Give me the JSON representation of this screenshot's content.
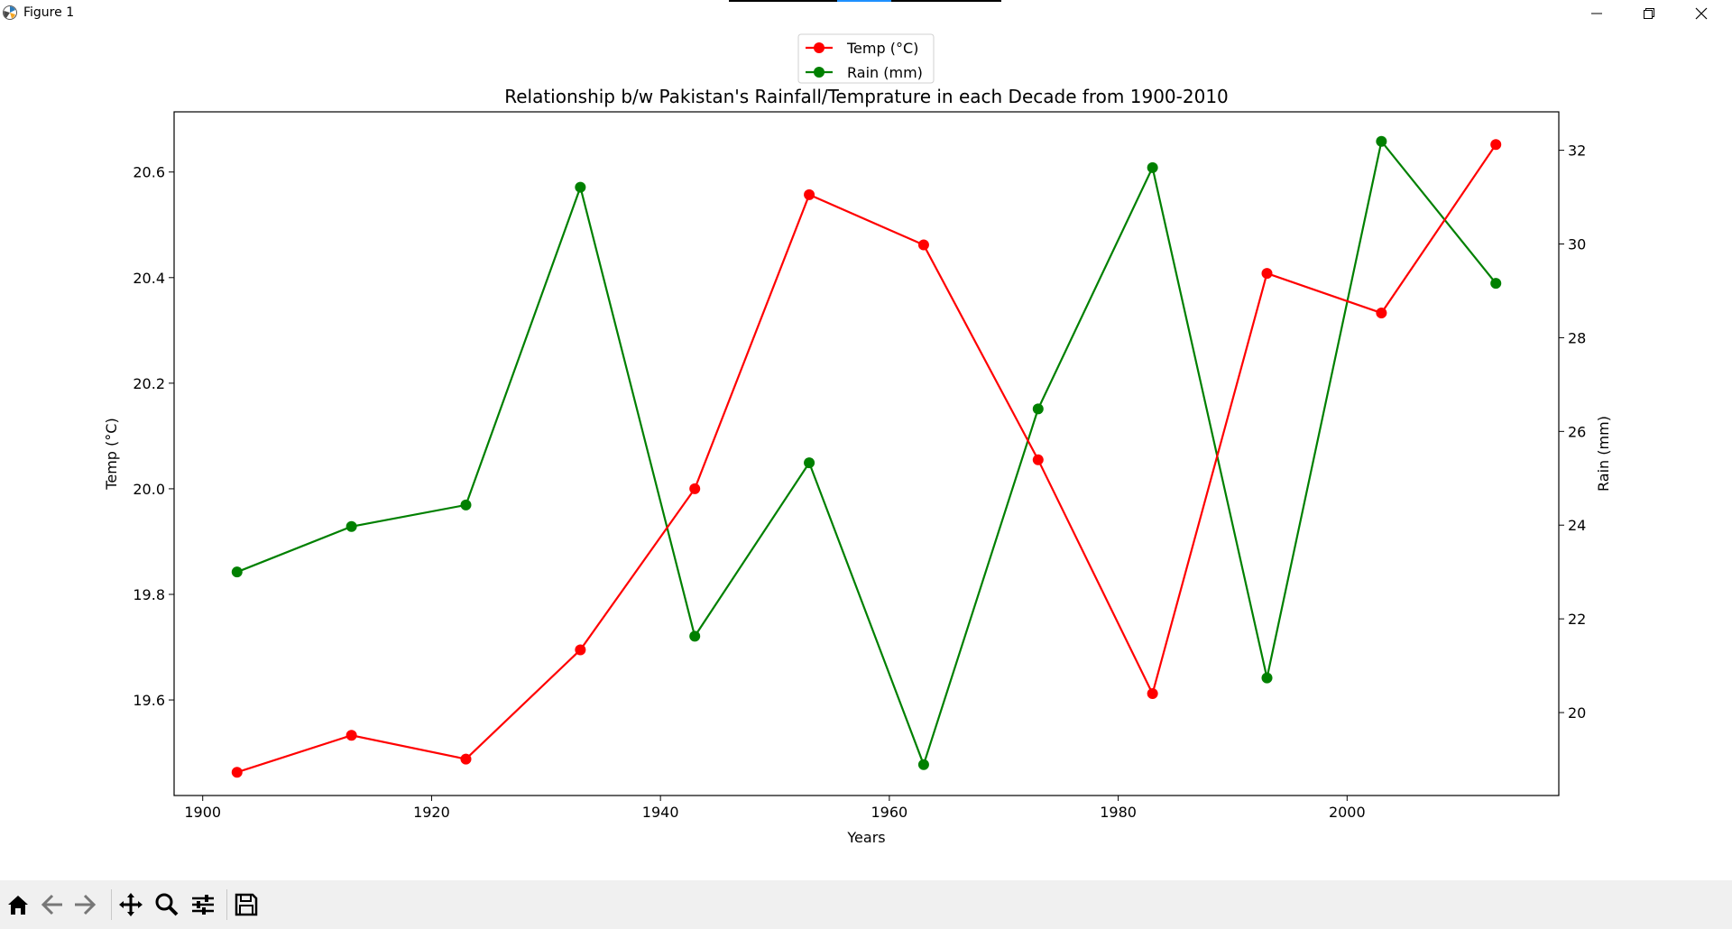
{
  "window": {
    "title": "Figure 1",
    "icons": {
      "app": "matplotlib-icon",
      "minimize": "minimize-icon",
      "maximize": "restore-icon",
      "close": "close-icon"
    }
  },
  "toolbar": {
    "buttons": [
      {
        "id": "home",
        "icon": "home-icon"
      },
      {
        "id": "back",
        "icon": "arrow-left-icon"
      },
      {
        "id": "forward",
        "icon": "arrow-right-icon"
      },
      {
        "id": "pan",
        "icon": "move-icon"
      },
      {
        "id": "zoom",
        "icon": "magnifier-icon"
      },
      {
        "id": "configure",
        "icon": "sliders-icon"
      },
      {
        "id": "save",
        "icon": "floppy-disk-icon"
      }
    ]
  },
  "chart_data": {
    "type": "line",
    "title": "Relationship b/w Pakistan's Rainfall/Temprature in each Decade from 1900-2010",
    "xlabel": "Years",
    "ylabel": "Temp (°C)",
    "y2label": "Rain (mm)",
    "x": [
      1903,
      1913,
      1923,
      1933,
      1943,
      1953,
      1963,
      1973,
      1983,
      1993,
      2003,
      2013
    ],
    "xlim": [
      1897.5,
      2018.5
    ],
    "xticks": [
      1900,
      1920,
      1940,
      1960,
      1980,
      2000
    ],
    "ylim": [
      19.419,
      20.714
    ],
    "yticks": [
      19.6,
      19.8,
      20.0,
      20.2,
      20.4,
      20.6
    ],
    "y2lim": [
      18.23,
      32.82
    ],
    "y2ticks": [
      20,
      22,
      24,
      26,
      28,
      30,
      32
    ],
    "grid": false,
    "legend_position": "top-center",
    "series": [
      {
        "name": "Temp (°C)",
        "axis": "left",
        "color": "#ff0000",
        "marker": "circle",
        "values": [
          19.463,
          19.533,
          19.488,
          19.695,
          20.0,
          20.557,
          20.462,
          20.055,
          19.612,
          20.408,
          20.333,
          20.652
        ]
      },
      {
        "name": "Rain (mm)",
        "axis": "right",
        "color": "#008000",
        "marker": "circle",
        "values": [
          23.0,
          23.97,
          24.43,
          31.21,
          21.63,
          25.33,
          18.89,
          26.48,
          31.63,
          20.74,
          32.19,
          29.16
        ]
      }
    ]
  }
}
